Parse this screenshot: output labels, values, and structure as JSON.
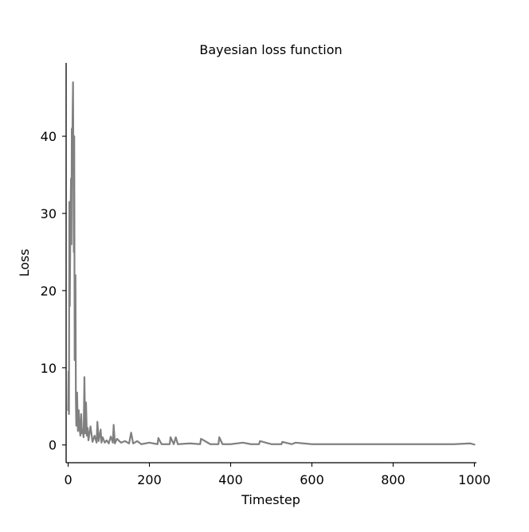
{
  "chart_data": {
    "type": "line",
    "title": "Bayesian loss function",
    "xlabel": "Timestep",
    "ylabel": "Loss",
    "xlim": [
      -5,
      1005
    ],
    "ylim": [
      -2.3,
      49.5
    ],
    "x_ticks": [
      0,
      200,
      400,
      600,
      800,
      1000
    ],
    "x_tick_labels": [
      "0",
      "200",
      "400",
      "600",
      "800",
      "1000"
    ],
    "y_ticks": [
      0,
      10,
      20,
      30,
      40
    ],
    "y_tick_labels": [
      "0",
      "10",
      "20",
      "30",
      "40"
    ],
    "grid": false,
    "legend": "none",
    "spines": "left-bottom",
    "colors": {
      "line": "#808080",
      "axes": "#000000",
      "background": "#ffffff"
    },
    "series": [
      {
        "values_note_x": "timestep",
        "x": [
          0,
          1,
          2,
          3,
          4,
          5,
          6,
          7,
          8,
          9,
          10,
          11,
          12,
          13,
          14,
          15,
          16,
          17,
          18,
          19,
          20,
          22,
          24,
          26,
          28,
          30,
          32,
          34,
          36,
          38,
          40,
          42,
          44,
          46,
          48,
          50,
          55,
          60,
          65,
          70,
          72,
          75,
          80,
          82,
          85,
          90,
          95,
          100,
          105,
          110,
          112,
          115,
          120,
          130,
          140,
          150,
          155,
          160,
          170,
          180,
          200,
          220,
          222,
          230,
          250,
          252,
          260,
          265,
          270,
          300,
          325,
          327,
          350,
          370,
          372,
          380,
          400,
          430,
          450,
          470,
          472,
          500,
          525,
          527,
          550,
          560,
          600,
          650,
          700,
          750,
          800,
          850,
          900,
          950,
          990,
          1000
        ],
        "y": [
          4.5,
          9.5,
          4,
          31.5,
          18,
          25,
          30,
          34.5,
          26,
          41,
          38,
          43,
          47,
          35,
          25,
          40,
          11,
          17,
          22,
          6,
          2.5,
          6.8,
          1.8,
          4.5,
          2.2,
          1.2,
          4,
          1.5,
          2,
          1,
          8.8,
          1.5,
          5.5,
          1.2,
          2.2,
          0.6,
          2.4,
          0.4,
          1.2,
          0.3,
          3,
          0.5,
          2,
          0.3,
          1,
          0.3,
          0.6,
          0.2,
          1.1,
          0.3,
          2.6,
          0.2,
          0.8,
          0.3,
          0.5,
          0.2,
          1.6,
          0.2,
          0.5,
          0.1,
          0.3,
          0.1,
          0.9,
          0.1,
          0.1,
          1,
          0.1,
          1,
          0.1,
          0.2,
          0.1,
          0.8,
          0.1,
          0.1,
          1,
          0.1,
          0.1,
          0.3,
          0.1,
          0.1,
          0.5,
          0.1,
          0.1,
          0.4,
          0.1,
          0.3,
          0.1,
          0.1,
          0.1,
          0.1,
          0.1,
          0.1,
          0.1,
          0.1,
          0.2,
          0.05
        ]
      }
    ]
  }
}
